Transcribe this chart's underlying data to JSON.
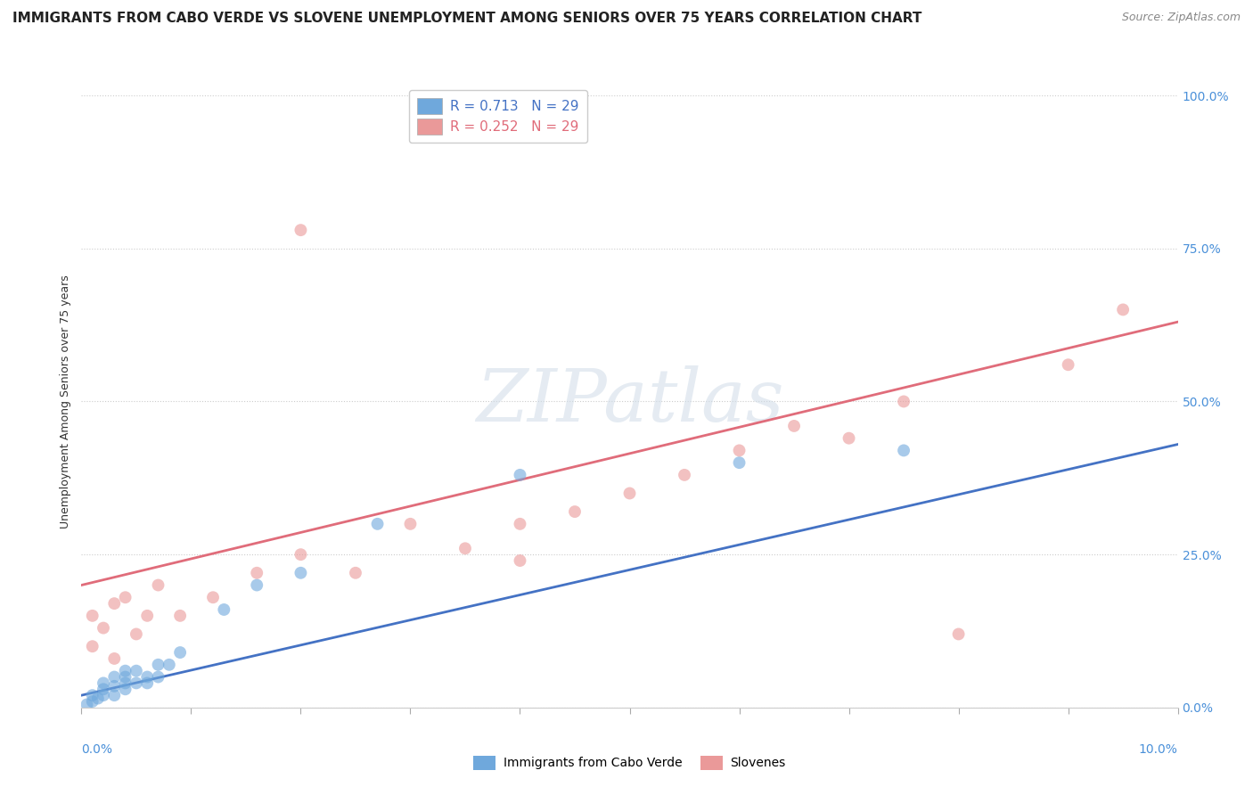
{
  "title": "IMMIGRANTS FROM CABO VERDE VS SLOVENE UNEMPLOYMENT AMONG SENIORS OVER 75 YEARS CORRELATION CHART",
  "source": "Source: ZipAtlas.com",
  "ylabel": "Unemployment Among Seniors over 75 years",
  "right_ytick_vals": [
    0.0,
    0.25,
    0.5,
    0.75,
    1.0
  ],
  "right_ytick_labels": [
    "0.0%",
    "25.0%",
    "50.0%",
    "75.0%",
    "100.0%"
  ],
  "x_left_label": "0.0%",
  "x_right_label": "10.0%",
  "xlim": [
    0.0,
    0.1
  ],
  "ylim": [
    0.0,
    1.0
  ],
  "blue_color": "#6fa8dc",
  "pink_color": "#ea9999",
  "blue_line_color": "#4472c4",
  "pink_line_color": "#e06c7a",
  "background_color": "#ffffff",
  "grid_color": "#cccccc",
  "blue_R": "0.713",
  "blue_N": "29",
  "pink_R": "0.252",
  "pink_N": "29",
  "blue_label": "Immigrants from Cabo Verde",
  "pink_label": "Slovenes",
  "watermark": "ZIPatlas",
  "blue_scatter_x": [
    0.0005,
    0.001,
    0.001,
    0.0015,
    0.002,
    0.002,
    0.002,
    0.003,
    0.003,
    0.003,
    0.004,
    0.004,
    0.004,
    0.004,
    0.005,
    0.005,
    0.006,
    0.006,
    0.007,
    0.007,
    0.008,
    0.009,
    0.013,
    0.016,
    0.02,
    0.027,
    0.04,
    0.06,
    0.075
  ],
  "blue_scatter_y": [
    0.005,
    0.01,
    0.02,
    0.015,
    0.02,
    0.03,
    0.04,
    0.02,
    0.035,
    0.05,
    0.03,
    0.04,
    0.05,
    0.06,
    0.04,
    0.06,
    0.04,
    0.05,
    0.05,
    0.07,
    0.07,
    0.09,
    0.16,
    0.2,
    0.22,
    0.3,
    0.38,
    0.4,
    0.42
  ],
  "pink_scatter_x": [
    0.001,
    0.001,
    0.002,
    0.003,
    0.003,
    0.004,
    0.005,
    0.006,
    0.007,
    0.009,
    0.012,
    0.016,
    0.02,
    0.025,
    0.03,
    0.035,
    0.04,
    0.045,
    0.05,
    0.055,
    0.06,
    0.065,
    0.07,
    0.075,
    0.08,
    0.02,
    0.04,
    0.09,
    0.095
  ],
  "pink_scatter_y": [
    0.1,
    0.15,
    0.13,
    0.08,
    0.17,
    0.18,
    0.12,
    0.15,
    0.2,
    0.15,
    0.18,
    0.22,
    0.25,
    0.22,
    0.3,
    0.26,
    0.3,
    0.32,
    0.35,
    0.38,
    0.42,
    0.46,
    0.44,
    0.5,
    0.12,
    0.78,
    0.24,
    0.56,
    0.65
  ],
  "blue_line_x": [
    0.0,
    0.1
  ],
  "blue_line_y": [
    0.02,
    0.43
  ],
  "pink_line_x": [
    0.0,
    0.1
  ],
  "pink_line_y": [
    0.2,
    0.63
  ],
  "scatter_size": 100,
  "scatter_alpha": 0.6,
  "title_fontsize": 11,
  "source_fontsize": 9,
  "legend_fontsize": 11,
  "tick_color": "#4a90d9",
  "right_tick_color": "#4a90d9"
}
